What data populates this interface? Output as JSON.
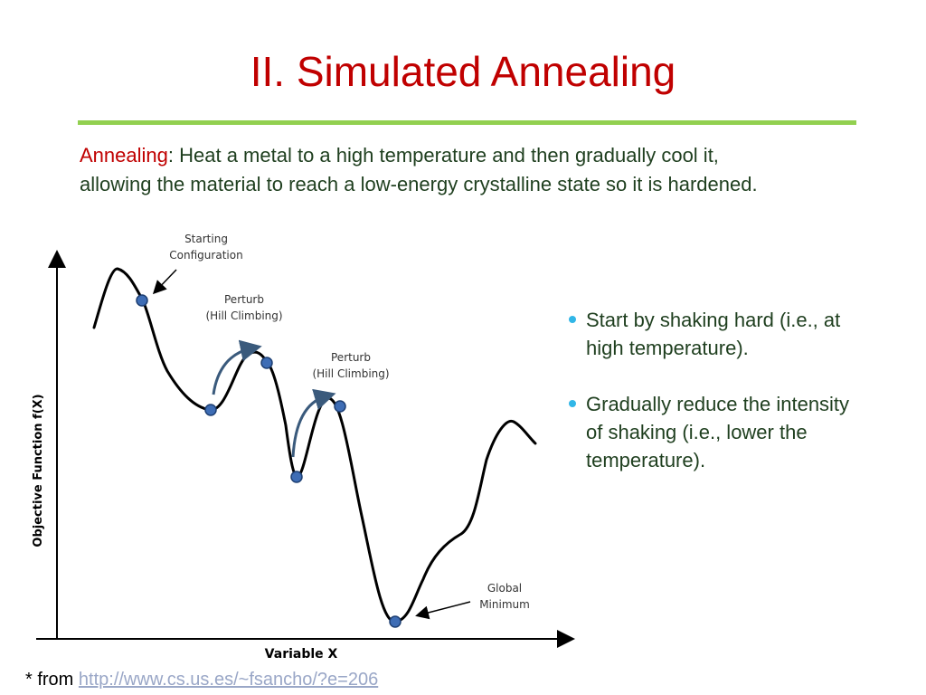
{
  "slide": {
    "title": "II. Simulated Annealing",
    "definition": {
      "term": "Annealing",
      "separator": ":",
      "line1": " Heat a metal to a high temperature and then gradually cool it,",
      "line2": "allowing the material to reach a low-energy crystalline state so it is hardened."
    },
    "bullets": [
      {
        "line1": "Start by shaking hard (i.e., at",
        "line2": "high temperature)."
      },
      {
        "line1": "Gradually reduce the intensity",
        "line2": "of shaking (i.e., lower the",
        "line3": "temperature)."
      }
    ],
    "source": {
      "prefix": "* from ",
      "link": "http://www.cs.us.es/~fsancho/?e=206"
    }
  },
  "figure": {
    "ylabel": "Objective Function f(X)",
    "xlabel": "Variable X",
    "annotations": {
      "start_line1": "Starting",
      "start_line2": "Configuration",
      "perturb1_line1": "Perturb",
      "perturb1_line2": "(Hill Climbing)",
      "perturb2_line1": "Perturb",
      "perturb2_line2": "(Hill Climbing)",
      "global_line1": "Global",
      "global_line2": "Minimum"
    }
  },
  "colors": {
    "title": "#c00000",
    "rule": "#92d050",
    "body_text": "#1f3f1f",
    "bullet": "#31b6e7",
    "point": "#3e6db5",
    "arrow": "#3a5a7c",
    "link": "#9aa7c7"
  }
}
